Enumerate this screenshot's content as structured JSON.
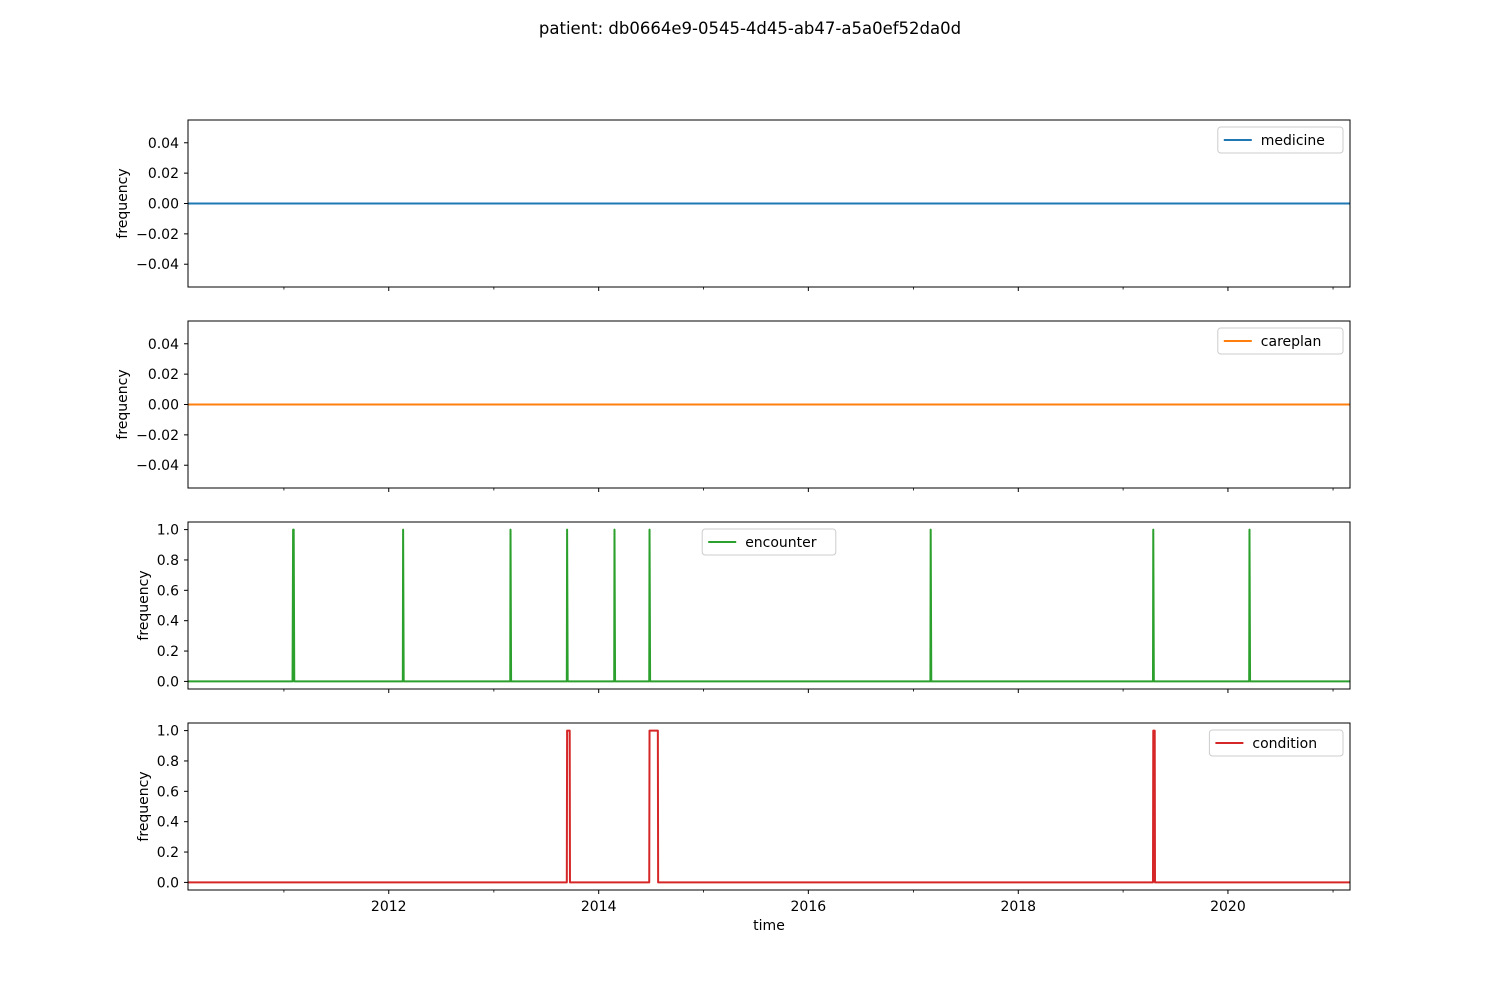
{
  "figure": {
    "title": "patient: db0664e9-0545-4d45-ab47-a5a0ef52da0d",
    "xlabel": "time"
  },
  "chart_data": [
    {
      "type": "line",
      "series": [
        {
          "name": "medicine",
          "color": "#1f77b4",
          "points": [
            [
              "2010-02-01",
              0
            ],
            [
              "2021-03-01",
              0
            ]
          ]
        }
      ],
      "ylabel": "frequency",
      "ylim": [
        -0.055,
        0.055
      ],
      "yticks": [
        0.04,
        0.02,
        0.0,
        -0.02,
        -0.04
      ],
      "yticklabels": [
        "0.04",
        "0.02",
        "0.00",
        "−0.02",
        "−0.04"
      ],
      "legend": "top-right",
      "show_xticklabels": false
    },
    {
      "type": "line",
      "series": [
        {
          "name": "careplan",
          "color": "#ff7f0e",
          "points": [
            [
              "2010-02-01",
              0
            ],
            [
              "2021-03-01",
              0
            ]
          ]
        }
      ],
      "ylabel": "frequency",
      "ylim": [
        -0.055,
        0.055
      ],
      "yticks": [
        0.04,
        0.02,
        0.0,
        -0.02,
        -0.04
      ],
      "yticklabels": [
        "0.04",
        "0.02",
        "0.00",
        "−0.02",
        "−0.04"
      ],
      "legend": "top-right",
      "show_xticklabels": false
    },
    {
      "type": "line",
      "series": [
        {
          "name": "encounter",
          "color": "#2ca02c",
          "points": [
            [
              "2010-02-01",
              0
            ],
            [
              "2011-01-31",
              0
            ],
            [
              "2011-02-02",
              1
            ],
            [
              "2011-02-04",
              1
            ],
            [
              "2011-02-06",
              0
            ],
            [
              "2012-02-19",
              0
            ],
            [
              "2012-02-20",
              1
            ],
            [
              "2012-02-22",
              0
            ],
            [
              "2013-02-27",
              0
            ],
            [
              "2013-02-28",
              1
            ],
            [
              "2013-03-02",
              0
            ],
            [
              "2013-09-12",
              0
            ],
            [
              "2013-09-13",
              1
            ],
            [
              "2013-09-15",
              0
            ],
            [
              "2014-02-24",
              0
            ],
            [
              "2014-02-25",
              1
            ],
            [
              "2014-02-27",
              0
            ],
            [
              "2014-06-26",
              0
            ],
            [
              "2014-06-27",
              1
            ],
            [
              "2014-06-29",
              0
            ],
            [
              "2017-03-01",
              0
            ],
            [
              "2017-03-02",
              1
            ],
            [
              "2017-03-04",
              0
            ],
            [
              "2019-04-15",
              0
            ],
            [
              "2019-04-16",
              1
            ],
            [
              "2019-04-18",
              0
            ],
            [
              "2020-03-15",
              0
            ],
            [
              "2020-03-16",
              1
            ],
            [
              "2020-03-18",
              0
            ],
            [
              "2021-03-01",
              0
            ]
          ]
        }
      ],
      "ylabel": "frequency",
      "ylim": [
        -0.05,
        1.05
      ],
      "yticks": [
        1.0,
        0.8,
        0.6,
        0.4,
        0.2,
        0.0
      ],
      "yticklabels": [
        "1.0",
        "0.8",
        "0.6",
        "0.4",
        "0.2",
        "0.0"
      ],
      "legend": "top-center",
      "show_xticklabels": false
    },
    {
      "type": "line",
      "series": [
        {
          "name": "condition",
          "color": "#d62728",
          "points": [
            [
              "2010-02-01",
              0
            ],
            [
              "2013-09-12",
              0
            ],
            [
              "2013-09-13",
              1
            ],
            [
              "2013-09-22",
              1
            ],
            [
              "2013-09-23",
              0
            ],
            [
              "2014-06-26",
              0
            ],
            [
              "2014-06-27",
              1
            ],
            [
              "2014-07-26",
              1
            ],
            [
              "2014-07-27",
              0
            ],
            [
              "2019-04-15",
              0
            ],
            [
              "2019-04-16",
              1
            ],
            [
              "2019-04-21",
              1
            ],
            [
              "2019-04-22",
              0
            ],
            [
              "2021-03-01",
              0
            ]
          ]
        }
      ],
      "ylabel": "frequency",
      "xlabel": "time",
      "ylim": [
        -0.05,
        1.05
      ],
      "yticks": [
        1.0,
        0.8,
        0.6,
        0.4,
        0.2,
        0.0
      ],
      "yticklabels": [
        "1.0",
        "0.8",
        "0.6",
        "0.4",
        "0.2",
        "0.0"
      ],
      "legend": "top-right",
      "show_xticklabels": true
    }
  ],
  "x_axis": {
    "xlim": [
      "2010-02-01",
      "2021-03-01"
    ],
    "major_ticks": [
      "2012-01-01",
      "2014-01-01",
      "2016-01-01",
      "2018-01-01",
      "2020-01-01"
    ],
    "major_labels": [
      "2012",
      "2014",
      "2016",
      "2018",
      "2020"
    ],
    "minor_ticks": [
      "2011-01-01",
      "2013-01-01",
      "2015-01-01",
      "2017-01-01",
      "2019-01-01",
      "2021-01-01"
    ]
  }
}
